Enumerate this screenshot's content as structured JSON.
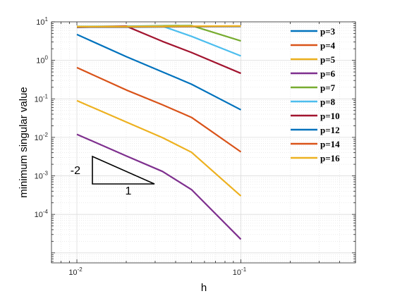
{
  "chart_data": {
    "type": "line",
    "title": "",
    "xlabel": "h",
    "ylabel": "minimum singular value",
    "xscale": "log",
    "yscale": "log",
    "xlim": [
      0.007,
      0.5
    ],
    "ylim": [
      5.5e-06,
      10
    ],
    "grid": true,
    "x_ticks": [
      {
        "value": 0.01,
        "mantissa": "10",
        "exp": "-2"
      },
      {
        "value": 0.1,
        "mantissa": "10",
        "exp": "-1"
      }
    ],
    "y_ticks": [
      {
        "value": 0.0001,
        "mantissa": "10",
        "exp": "-4"
      },
      {
        "value": 0.001,
        "mantissa": "10",
        "exp": "-3"
      },
      {
        "value": 0.01,
        "mantissa": "10",
        "exp": "-2"
      },
      {
        "value": 0.1,
        "mantissa": "10",
        "exp": "-1"
      },
      {
        "value": 1,
        "mantissa": "10",
        "exp": "0"
      },
      {
        "value": 10,
        "mantissa": "10",
        "exp": "1"
      }
    ],
    "legend_position": "top-right",
    "series": [
      {
        "name": "p=3",
        "color": "#0072BD",
        "x": [
          0.01,
          0.02,
          0.0333,
          0.05,
          0.1
        ],
        "y": [
          4.7,
          1.25,
          0.5,
          0.24,
          0.052
        ]
      },
      {
        "name": "p=4",
        "color": "#D95319",
        "x": [
          0.01,
          0.02,
          0.0333,
          0.05,
          0.1
        ],
        "y": [
          0.65,
          0.17,
          0.07,
          0.033,
          0.0042
        ]
      },
      {
        "name": "p=5",
        "color": "#EDB120",
        "x": [
          0.01,
          0.02,
          0.0333,
          0.05,
          0.1
        ],
        "y": [
          0.09,
          0.025,
          0.0098,
          0.0041,
          0.0003
        ]
      },
      {
        "name": "p=6",
        "color": "#7E2F8E",
        "x": [
          0.01,
          0.02,
          0.0333,
          0.05,
          0.1
        ],
        "y": [
          0.012,
          0.0033,
          0.0013,
          0.00044,
          2.25e-05
        ]
      },
      {
        "name": "p=7",
        "color": "#77AC30",
        "x": [
          0.01,
          0.02,
          0.0333,
          0.05,
          0.1
        ],
        "y": [
          7.6,
          7.7,
          7.9,
          8.0,
          3.2
        ]
      },
      {
        "name": "p=8",
        "color": "#4DBEEE",
        "x": [
          0.01,
          0.02,
          0.0333,
          0.05,
          0.1
        ],
        "y": [
          7.5,
          7.6,
          7.7,
          4.2,
          1.3
        ]
      },
      {
        "name": "p=10",
        "color": "#A2142F",
        "x": [
          0.01,
          0.02,
          0.0333,
          0.05,
          0.1
        ],
        "y": [
          7.2,
          7.7,
          3.1,
          1.6,
          0.46
        ]
      },
      {
        "name": "p=12",
        "color": "#0072BD",
        "x": [
          0.01,
          0.02,
          0.0333,
          0.05,
          0.1
        ],
        "y": [
          7.3,
          7.3,
          7.4,
          7.5,
          7.6
        ]
      },
      {
        "name": "p=14",
        "color": "#D95319",
        "x": [
          0.01,
          0.02,
          0.0333,
          0.05,
          0.1
        ],
        "y": [
          7.4,
          7.4,
          7.5,
          7.6,
          7.7
        ]
      },
      {
        "name": "p=16",
        "color": "#EDB120",
        "x": [
          0.01,
          0.02,
          0.0333,
          0.05,
          0.1
        ],
        "y": [
          7.5,
          7.5,
          7.6,
          7.7,
          7.8
        ]
      }
    ],
    "annotation": {
      "type": "slope-triangle",
      "vertical_label": "-2",
      "horizontal_label": "1"
    }
  }
}
